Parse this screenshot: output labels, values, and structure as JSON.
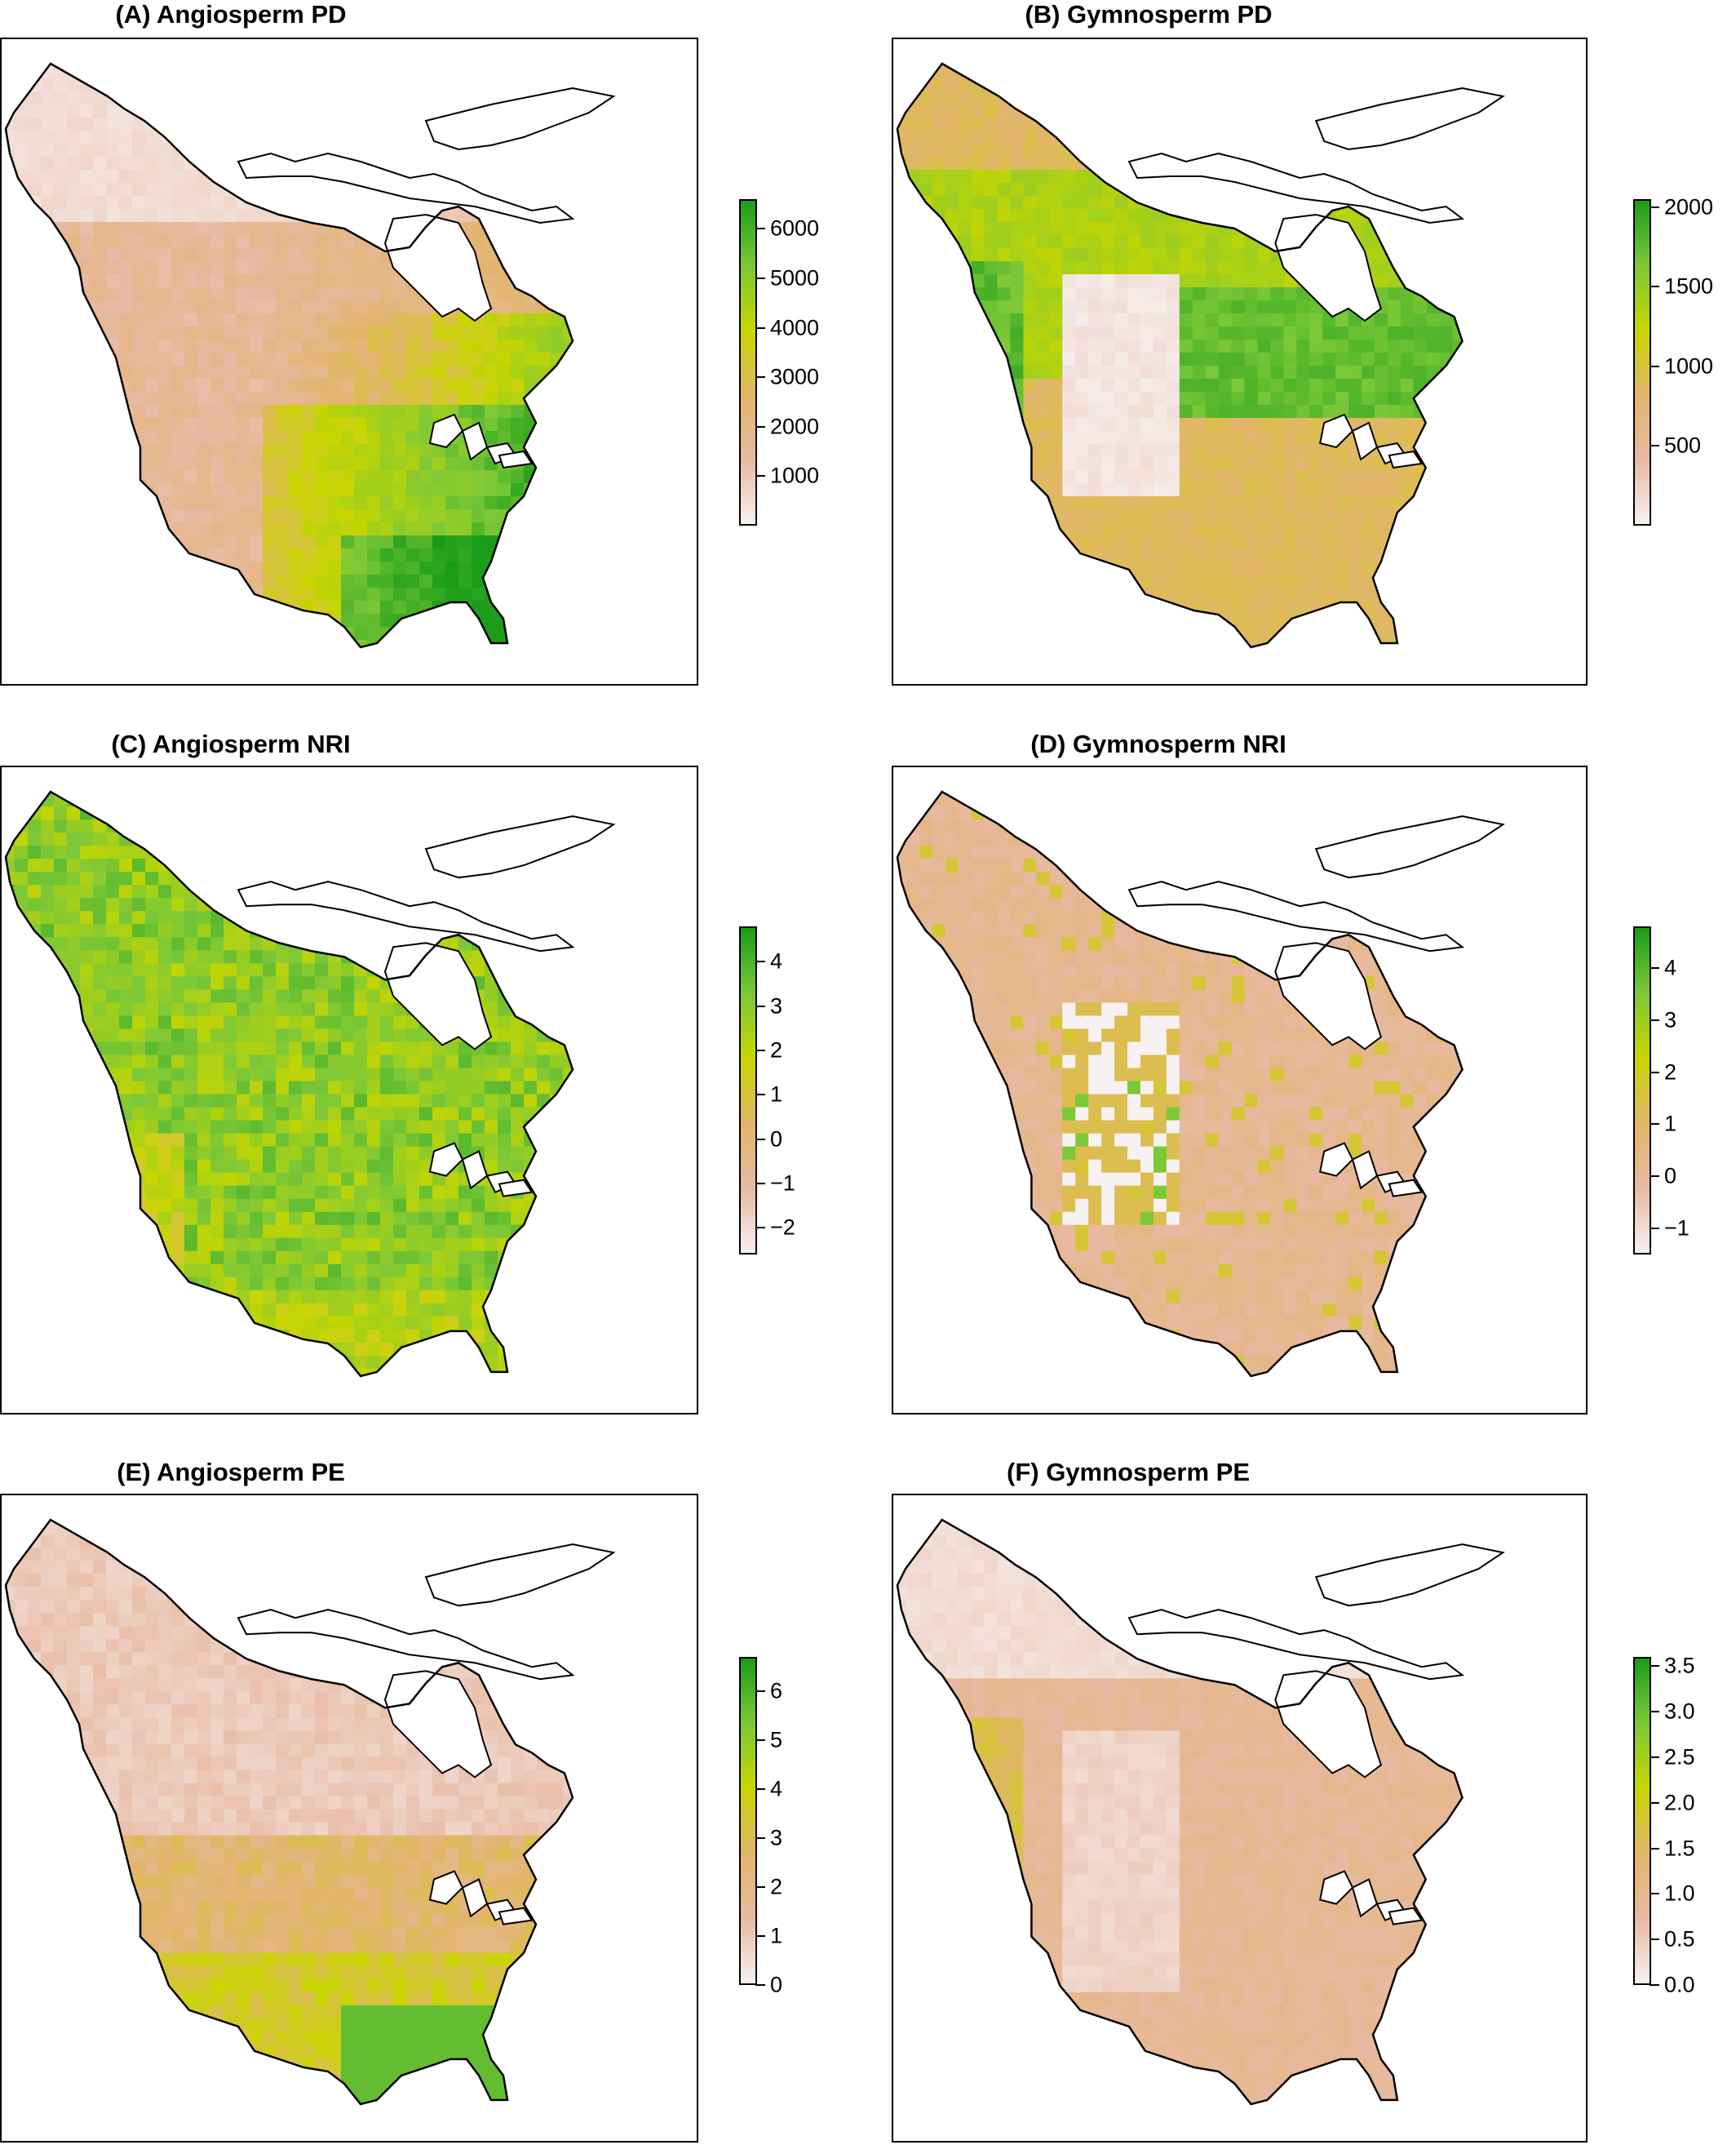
{
  "figure": {
    "colormap": [
      "#f7f1f1",
      "#e8b9a2",
      "#e2b56a",
      "#c8d600",
      "#7cc837",
      "#1a9c1a"
    ],
    "panels": [
      {
        "id": "A",
        "title": "(A) Angiosperm PD",
        "legend": {
          "range": [
            0,
            6600
          ],
          "ticks": [
            "6000",
            "5000",
            "4000",
            "3000",
            "2000",
            "1000"
          ]
        },
        "pattern": "angio_pd"
      },
      {
        "id": "B",
        "title": "(B) Gymnosperm PD",
        "legend": {
          "range": [
            0,
            2050
          ],
          "ticks": [
            "2000",
            "1500",
            "1000",
            "500"
          ]
        },
        "pattern": "gymno_pd"
      },
      {
        "id": "C",
        "title": "(C) Angiosperm NRI",
        "legend": {
          "range": [
            -2.6,
            4.8
          ],
          "ticks": [
            "4",
            "3",
            "2",
            "1",
            "0",
            "−1",
            "−2"
          ]
        },
        "pattern": "angio_nri"
      },
      {
        "id": "D",
        "title": "(D) Gymnosperm NRI",
        "legend": {
          "range": [
            -1.5,
            4.8
          ],
          "ticks": [
            "4",
            "3",
            "2",
            "1",
            "0",
            "−1"
          ]
        },
        "pattern": "gymno_nri"
      },
      {
        "id": "E",
        "title": "(E) Angiosperm PE",
        "legend": {
          "range": [
            0,
            6.7
          ],
          "ticks": [
            "6",
            "5",
            "4",
            "3",
            "2",
            "1",
            "0"
          ]
        },
        "pattern": "angio_pe"
      },
      {
        "id": "F",
        "title": "(F) Gymnosperm PE",
        "legend": {
          "range": [
            0,
            3.6
          ],
          "ticks": [
            "3.5",
            "3.0",
            "2.5",
            "2.0",
            "1.5",
            "1.0",
            "0.5",
            "0.0"
          ]
        },
        "pattern": "gymno_pe"
      }
    ]
  }
}
